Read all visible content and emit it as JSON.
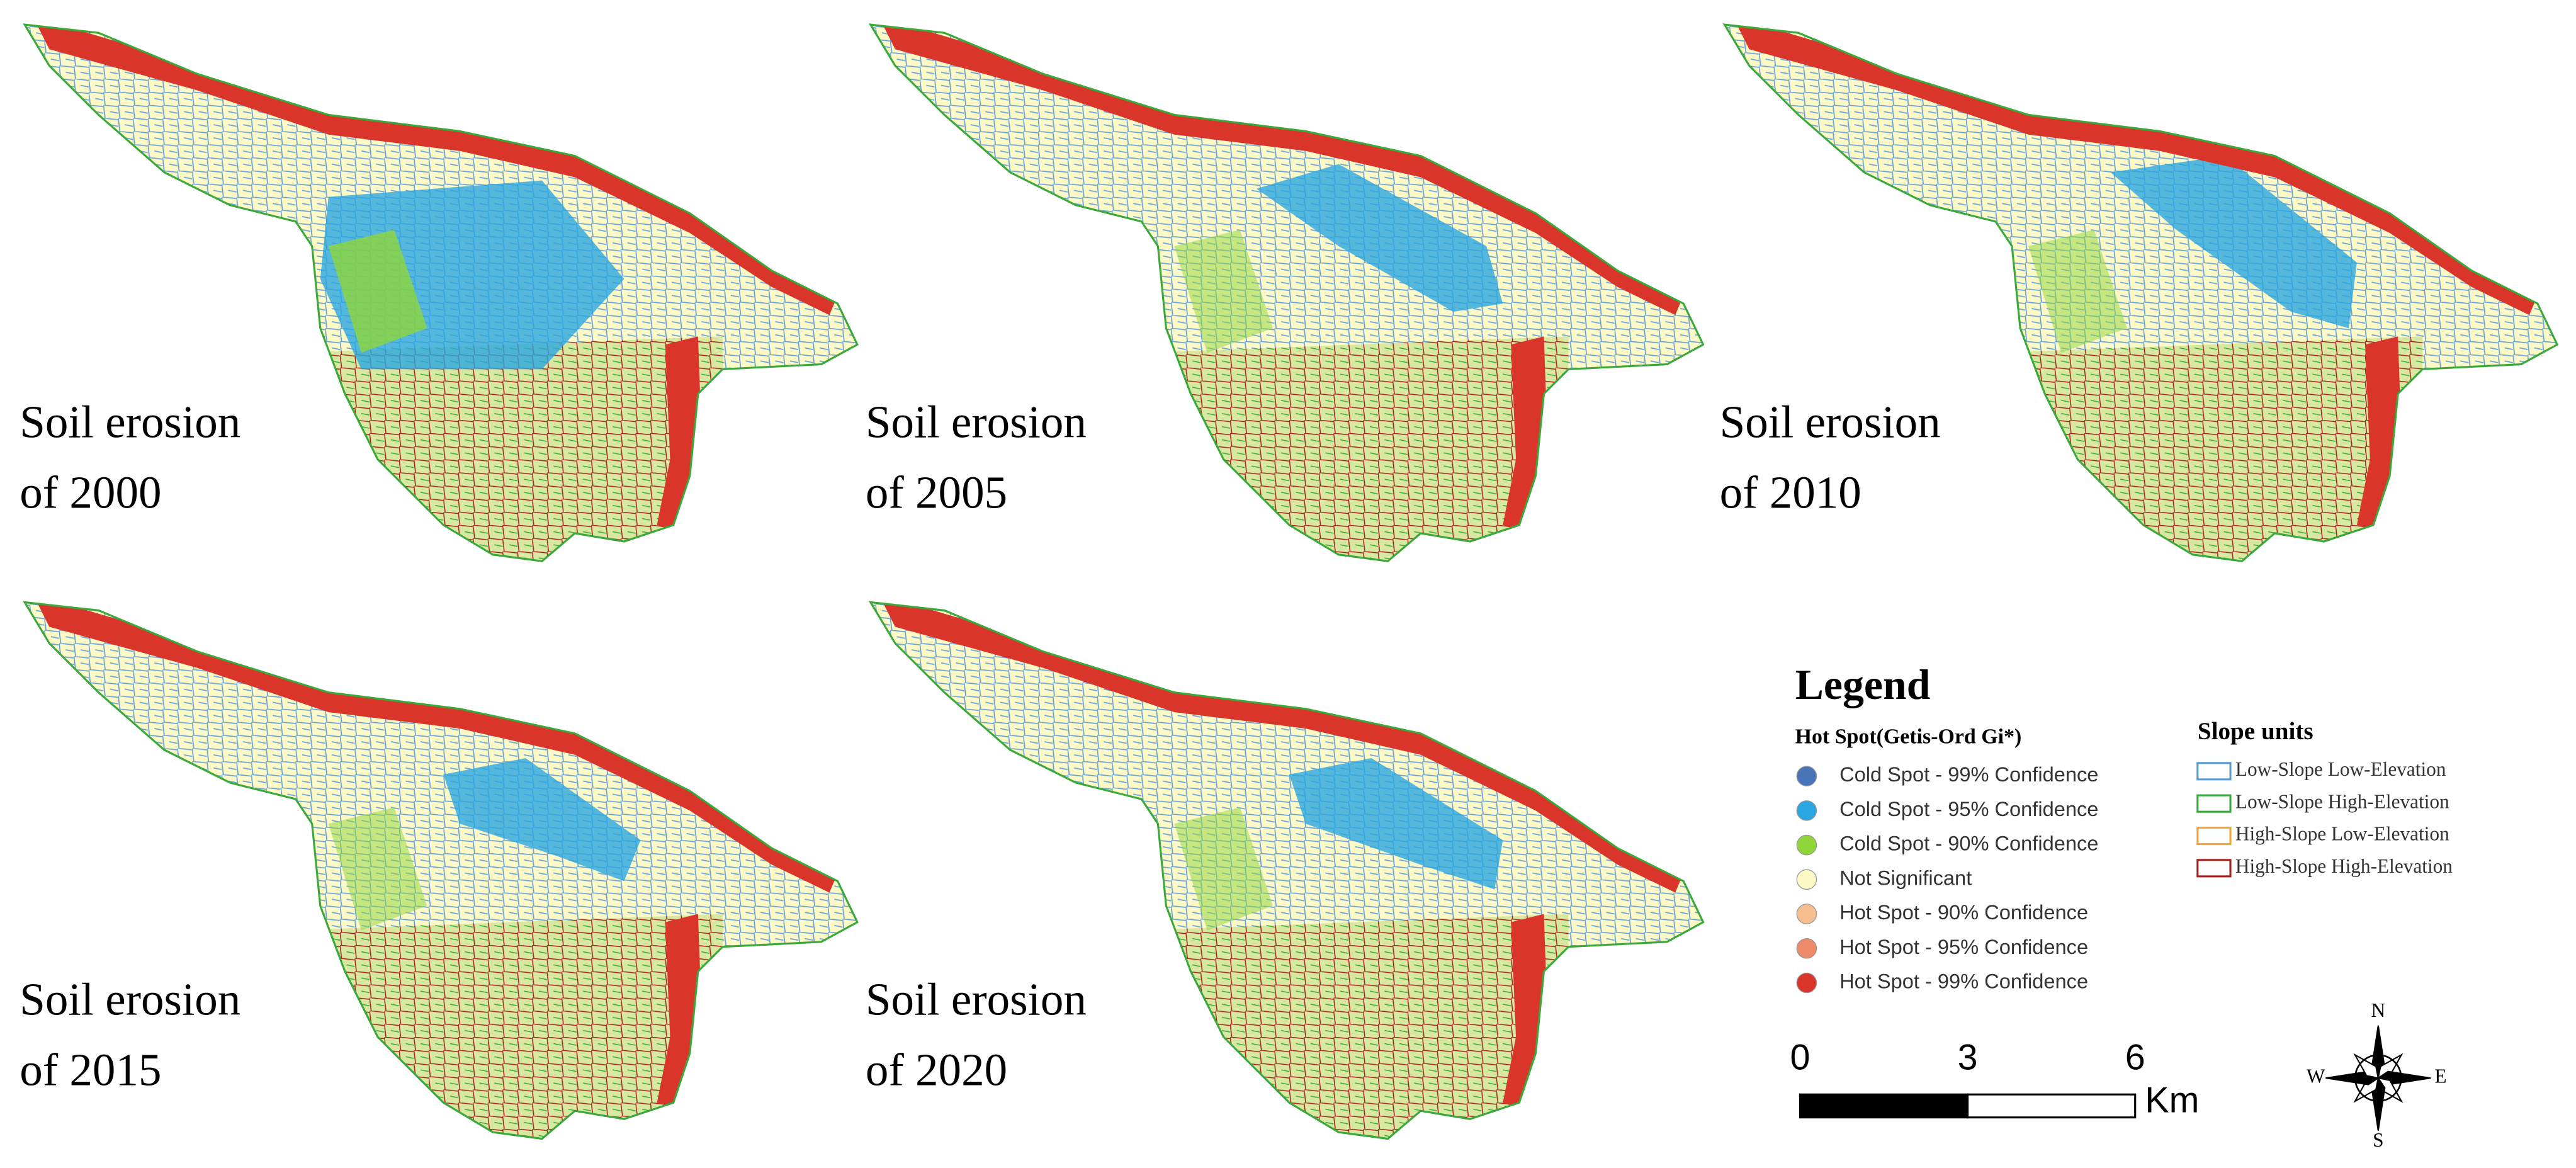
{
  "panels": [
    {
      "title_lines": [
        "Soil erosion",
        "of 2000"
      ]
    },
    {
      "title_lines": [
        "Soil erosion",
        "of 2005"
      ]
    },
    {
      "title_lines": [
        "Soil erosion",
        "of 2010"
      ]
    },
    {
      "title_lines": [
        "Soil erosion",
        "of 2015"
      ]
    },
    {
      "title_lines": [
        "Soil erosion",
        "of 2020"
      ]
    }
  ],
  "legend": {
    "title": "Legend",
    "hot_spot": {
      "title": "Hot Spot(Getis-Ord Gi*)",
      "items": [
        {
          "label": "Cold Spot - 99% Confidence",
          "color": "#4a74b8"
        },
        {
          "label": "Cold Spot - 95% Confidence",
          "color": "#2aa6e0"
        },
        {
          "label": "Cold Spot - 90% Confidence",
          "color": "#8fd63a"
        },
        {
          "label": "Not Significant",
          "color": "#fdf9c6"
        },
        {
          "label": "Hot Spot - 90% Confidence",
          "color": "#f6bd8e"
        },
        {
          "label": "Hot Spot - 95% Confidence",
          "color": "#ec8a6a"
        },
        {
          "label": "Hot Spot - 99% Confidence",
          "color": "#d9352b"
        }
      ]
    },
    "slope_units": {
      "title": "Slope units",
      "items": [
        {
          "label": "Low-Slope Low-Elevation",
          "color": "#5b9bd5"
        },
        {
          "label": "Low-Slope High-Elevation",
          "color": "#3aa83a"
        },
        {
          "label": "High-Slope Low-Elevation",
          "color": "#f4a533"
        },
        {
          "label": "High-Slope High-Elevation",
          "color": "#a3221f"
        }
      ]
    }
  },
  "scale_bar": {
    "ticks": [
      0,
      3,
      6
    ],
    "unit": "Km"
  },
  "compass": {
    "north": "N",
    "south": "S",
    "east": "E",
    "west": "W"
  }
}
